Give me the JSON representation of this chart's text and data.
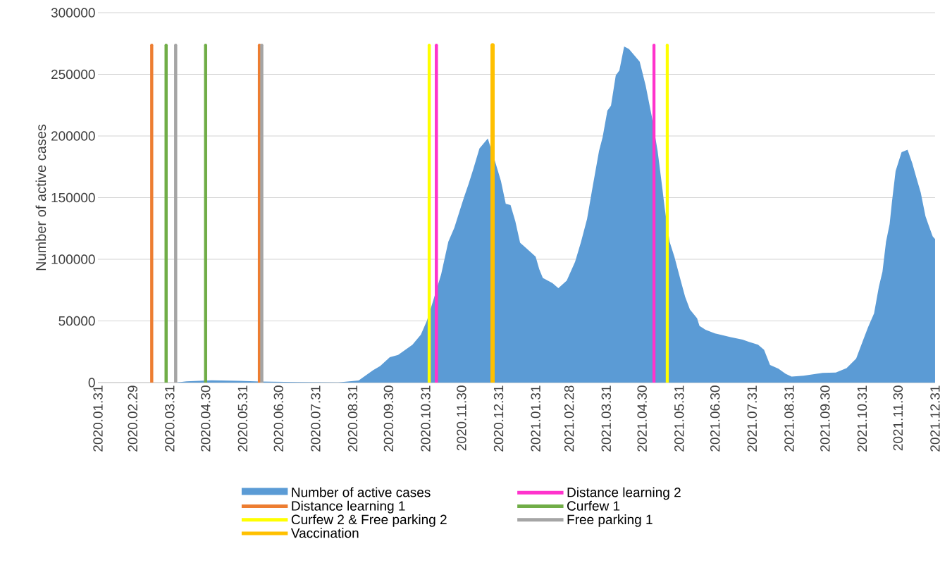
{
  "chart_data": {
    "type": "area",
    "ylabel": "Number of active cases",
    "x": [
      "2020-04-05",
      "2020-04-14",
      "2020-05-05",
      "2020-05-28",
      "2020-06-15",
      "2020-07-15",
      "2020-08-19",
      "2020-09-05",
      "2020-09-17",
      "2020-09-23",
      "2020-10-01",
      "2020-10-08",
      "2020-10-14",
      "2020-10-20",
      "2020-10-27",
      "2020-11-01",
      "2020-11-06",
      "2020-11-13",
      "2020-11-19",
      "2020-11-24",
      "2020-11-28",
      "2020-12-02",
      "2020-12-06",
      "2020-12-10",
      "2020-12-15",
      "2020-12-22",
      "2020-12-28",
      "2021-01-02",
      "2021-01-06",
      "2021-01-10",
      "2021-01-14",
      "2021-01-18",
      "2021-01-23",
      "2021-01-31",
      "2021-02-03",
      "2021-02-06",
      "2021-02-14",
      "2021-02-19",
      "2021-02-26",
      "2021-03-05",
      "2021-03-10",
      "2021-03-15",
      "2021-03-19",
      "2021-03-25",
      "2021-03-28",
      "2021-04-01",
      "2021-04-04",
      "2021-04-08",
      "2021-04-11",
      "2021-04-15",
      "2021-04-19",
      "2021-04-28",
      "2021-05-03",
      "2021-05-08",
      "2021-05-13",
      "2021-05-17",
      "2021-05-19",
      "2021-05-23",
      "2021-05-27",
      "2021-06-01",
      "2021-06-05",
      "2021-06-09",
      "2021-06-15",
      "2021-06-17",
      "2021-06-22",
      "2021-06-30",
      "2021-07-13",
      "2021-07-23",
      "2021-07-28",
      "2021-08-05",
      "2021-08-10",
      "2021-08-15",
      "2021-08-22",
      "2021-08-28",
      "2021-09-02",
      "2021-09-12",
      "2021-09-28",
      "2021-10-09",
      "2021-10-18",
      "2021-10-26",
      "2021-11-01",
      "2021-11-05",
      "2021-11-10",
      "2021-11-14",
      "2021-11-17",
      "2021-11-20",
      "2021-11-23",
      "2021-11-25",
      "2021-11-28",
      "2021-12-03",
      "2021-12-08",
      "2021-12-12",
      "2021-12-15",
      "2021-12-19",
      "2021-12-23",
      "2021-12-26",
      "2021-12-29",
      "2021-12-31"
    ],
    "series": [
      {
        "name": "Number of active cases",
        "color": "#5b9bd5",
        "values": [
          0,
          1000,
          1800,
          1500,
          900,
          400,
          200,
          1700,
          10000,
          13400,
          20500,
          22500,
          26600,
          30700,
          38900,
          50000,
          65400,
          87800,
          114300,
          125600,
          137800,
          150000,
          161300,
          173500,
          189900,
          198000,
          179600,
          163400,
          145000,
          144000,
          130800,
          113400,
          109200,
          102100,
          92000,
          84800,
          80700,
          76600,
          82700,
          98000,
          114300,
          132700,
          155200,
          187800,
          199000,
          220500,
          224600,
          249100,
          253100,
          272500,
          270500,
          260300,
          240900,
          216400,
          187800,
          157200,
          140900,
          114300,
          102100,
          83800,
          69500,
          59300,
          52100,
          46000,
          42900,
          39900,
          36800,
          34800,
          33100,
          30700,
          26600,
          14300,
          11300,
          7200,
          4800,
          5600,
          7800,
          8200,
          11700,
          19400,
          34800,
          45000,
          56200,
          77700,
          89900,
          114300,
          128600,
          147000,
          171500,
          186800,
          188800,
          177700,
          167400,
          154200,
          134900,
          126600,
          118500,
          116400
        ]
      }
    ],
    "ref_lines": [
      {
        "axis": "x",
        "value": "2020-11-09",
        "label": "Distance learning 2",
        "color": "#ff33cc"
      },
      {
        "axis": "x",
        "value": "2021-05-10",
        "color": "#ff33cc"
      },
      {
        "axis": "x",
        "value": "2020-03-16",
        "label": "Distance learning 1",
        "color": "#ed7d31"
      },
      {
        "axis": "x",
        "value": "2020-06-14",
        "color": "#ed7d31"
      },
      {
        "axis": "x",
        "value": "2020-03-28",
        "label": "Curfew 1",
        "color": "#70ad47"
      },
      {
        "axis": "x",
        "value": "2020-04-30",
        "color": "#70ad47"
      },
      {
        "axis": "x",
        "value": "2020-11-03",
        "label": "Curfew 2 & Free parking 2",
        "color": "#ffff00"
      },
      {
        "axis": "x",
        "value": "2021-05-21",
        "color": "#ffff00"
      },
      {
        "axis": "x",
        "value": "2020-04-05",
        "label": "Free parking 1",
        "color": "#a5a5a5"
      },
      {
        "axis": "x",
        "value": "2020-06-16",
        "color": "#a5a5a5"
      },
      {
        "axis": "x",
        "value": "2020-12-26",
        "label": "Vaccination",
        "color": "#ffc000"
      }
    ],
    "xlim": [
      "2020-01-31",
      "2021-12-31"
    ],
    "xticks": [
      {
        "value": "2020-01-31",
        "label": "2020.01.31"
      },
      {
        "value": "2020-02-29",
        "label": "2020.02.29"
      },
      {
        "value": "2020-03-31",
        "label": "2020.03.31"
      },
      {
        "value": "2020-04-30",
        "label": "2020.04.30"
      },
      {
        "value": "2020-05-31",
        "label": "2020.05.31"
      },
      {
        "value": "2020-06-30",
        "label": "2020.06.30"
      },
      {
        "value": "2020-07-31",
        "label": "2020.07.31"
      },
      {
        "value": "2020-08-31",
        "label": "2020.08.31"
      },
      {
        "value": "2020-09-30",
        "label": "2020.09.30"
      },
      {
        "value": "2020-10-31",
        "label": "2020.10.31"
      },
      {
        "value": "2020-11-30",
        "label": "2020.11.30"
      },
      {
        "value": "2020-12-31",
        "label": "2020.12.31"
      },
      {
        "value": "2021-01-31",
        "label": "2021.01.31"
      },
      {
        "value": "2021-02-28",
        "label": "2021.02.28"
      },
      {
        "value": "2021-03-31",
        "label": "2021.03.31"
      },
      {
        "value": "2021-04-30",
        "label": "2021.04.30"
      },
      {
        "value": "2021-05-31",
        "label": "2021.05.31"
      },
      {
        "value": "2021-06-30",
        "label": "2021.06.30"
      },
      {
        "value": "2021-07-31",
        "label": "2021.07.31"
      },
      {
        "value": "2021-08-31",
        "label": "2021.08.31"
      },
      {
        "value": "2021-09-30",
        "label": "2021.09.30"
      },
      {
        "value": "2021-10-31",
        "label": "2021.10.31"
      },
      {
        "value": "2021-11-30",
        "label": "2021.11.30"
      },
      {
        "value": "2021-12-31",
        "label": "2021.12.31"
      }
    ],
    "ylim": [
      0,
      300000
    ],
    "yticks": [
      0,
      50000,
      100000,
      150000,
      200000,
      250000,
      300000
    ],
    "grid": "y",
    "legend": "bottom"
  }
}
